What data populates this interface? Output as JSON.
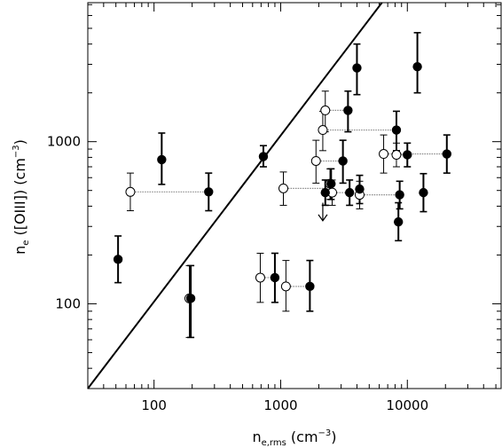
{
  "chart_data": {
    "type": "scatter",
    "xscale": "log",
    "yscale": "log",
    "xlim": [
      30,
      55000
    ],
    "ylim": [
      30,
      7200
    ],
    "xticks": [
      100,
      1000,
      10000
    ],
    "xtick_labels": [
      "100",
      "1000",
      "10000"
    ],
    "yticks": [
      100,
      1000
    ],
    "ytick_labels": [
      "100",
      "1000"
    ],
    "xlabel": "n_e,rms (cm^-3)",
    "ylabel": "n_e ([OIII]) (cm^-3)",
    "grid": false,
    "reference_line": {
      "label": "",
      "x": [
        30,
        6300
      ],
      "y": [
        30,
        7200
      ]
    },
    "filled_points": [
      {
        "x": 52,
        "y": 188,
        "ylo": 135,
        "yhi": 262
      },
      {
        "x": 115,
        "y": 775,
        "ylo": 545,
        "yhi": 1130
      },
      {
        "x": 195,
        "y": 108,
        "ylo": 62,
        "yhi": 172
      },
      {
        "x": 270,
        "y": 490,
        "ylo": 375,
        "yhi": 640
      },
      {
        "x": 730,
        "y": 810,
        "ylo": 700,
        "yhi": 945
      },
      {
        "x": 900,
        "y": 145,
        "ylo": 102,
        "yhi": 205
      },
      {
        "x": 1700,
        "y": 128,
        "ylo": 90,
        "yhi": 185
      },
      {
        "x": 2250,
        "y": 485,
        "ylo": 405,
        "yhi": 580
      },
      {
        "x": 2500,
        "y": 550,
        "ylo": 440,
        "yhi": 680
      },
      {
        "x": 3100,
        "y": 760,
        "ylo": 555,
        "yhi": 1020
      },
      {
        "x": 3400,
        "y": 1560,
        "ylo": 1150,
        "yhi": 2050
      },
      {
        "x": 3500,
        "y": 485,
        "ylo": 405,
        "yhi": 580
      },
      {
        "x": 4000,
        "y": 2850,
        "ylo": 1950,
        "yhi": 4000
      },
      {
        "x": 4200,
        "y": 510,
        "ylo": 415,
        "yhi": 620
      },
      {
        "x": 8200,
        "y": 1180,
        "ylo": 880,
        "yhi": 1540
      },
      {
        "x": 8700,
        "y": 470,
        "ylo": 385,
        "yhi": 570
      },
      {
        "x": 8500,
        "y": 320,
        "ylo": 245,
        "yhi": 420
      },
      {
        "x": 10000,
        "y": 830,
        "ylo": 700,
        "yhi": 980
      },
      {
        "x": 12000,
        "y": 2900,
        "ylo": 2000,
        "yhi": 4700
      },
      {
        "x": 13400,
        "y": 485,
        "ylo": 370,
        "yhi": 635
      },
      {
        "x": 20500,
        "y": 840,
        "ylo": 640,
        "yhi": 1100
      }
    ],
    "open_points": [
      {
        "x": 65,
        "y": 490,
        "ylo": 375,
        "yhi": 640
      },
      {
        "x": 190,
        "y": 108,
        "ylo": 62,
        "yhi": 172
      },
      {
        "x": 690,
        "y": 145,
        "ylo": 102,
        "yhi": 205
      },
      {
        "x": 1100,
        "y": 128,
        "ylo": 90,
        "yhi": 185
      },
      {
        "x": 1050,
        "y": 515,
        "ylo": 405,
        "yhi": 650
      },
      {
        "x": 1900,
        "y": 760,
        "ylo": 555,
        "yhi": 1020
      },
      {
        "x": 2150,
        "y": 1180,
        "ylo": 880,
        "yhi": 1540
      },
      {
        "x": 2250,
        "y": 1560,
        "ylo": 1150,
        "yhi": 2050
      },
      {
        "x": 2450,
        "y": 550,
        "ylo": 440,
        "yhi": 680
      },
      {
        "x": 2550,
        "y": 485,
        "ylo": 405,
        "yhi": 580
      },
      {
        "x": 4200,
        "y": 470,
        "ylo": 385,
        "yhi": 570
      },
      {
        "x": 6500,
        "y": 840,
        "ylo": 640,
        "yhi": 1100
      },
      {
        "x": 8200,
        "y": 830,
        "ylo": 700,
        "yhi": 980
      }
    ],
    "upper_limits": [
      {
        "x": 2150,
        "y": 420,
        "y_to": 325
      }
    ],
    "connectors": [
      {
        "x1": 65,
        "x2": 270,
        "y": 490
      },
      {
        "x1": 190,
        "x2": 195,
        "y": 108
      },
      {
        "x1": 690,
        "x2": 900,
        "y": 145
      },
      {
        "x1": 1100,
        "x2": 1700,
        "y": 128
      },
      {
        "x1": 1050,
        "x2": 2250,
        "y": 515
      },
      {
        "x1": 1900,
        "x2": 3100,
        "y": 760
      },
      {
        "x1": 2150,
        "x2": 8200,
        "y": 1180
      },
      {
        "x1": 2250,
        "x2": 3400,
        "y": 1560
      },
      {
        "x1": 2450,
        "x2": 2500,
        "y": 550
      },
      {
        "x1": 2550,
        "x2": 3500,
        "y": 485
      },
      {
        "x1": 4200,
        "x2": 8700,
        "y": 470
      },
      {
        "x1": 6500,
        "x2": 20500,
        "y": 840
      },
      {
        "x1": 8200,
        "x2": 10000,
        "y": 830
      }
    ]
  }
}
